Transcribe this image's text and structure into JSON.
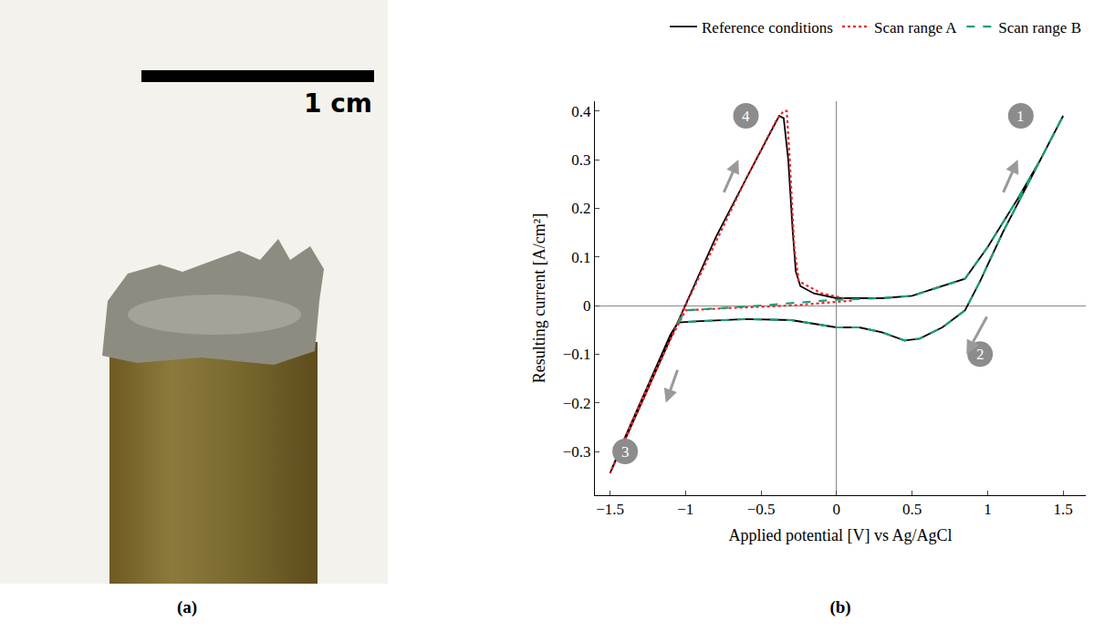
{
  "chart_data": {
    "type": "line",
    "x_label": "Applied potential [V] vs Ag/AgCl",
    "y_label": "Resulting current [A/cm²]",
    "xlim": [
      -1.6,
      1.65
    ],
    "ylim": [
      -0.39,
      0.42
    ],
    "xticks": [
      {
        "value": -1.5,
        "label": "−1.5"
      },
      {
        "value": -1,
        "label": "−1"
      },
      {
        "value": -0.5,
        "label": "−0.5"
      },
      0,
      0.5,
      1,
      1.5
    ],
    "yticks": [
      {
        "value": -0.3,
        "label": "−0.3"
      },
      {
        "value": -0.2,
        "label": "−0.2"
      },
      {
        "value": -0.1,
        "label": "−0.1"
      },
      0,
      0.1,
      0.2,
      0.3,
      0.4
    ],
    "grid": false,
    "legend": "top",
    "series": [
      {
        "name": "Reference conditions",
        "color": "#000000",
        "line_style": "solid",
        "x": [
          0,
          0.3,
          0.5,
          0.7,
          0.85,
          1.0,
          1.2,
          1.35,
          1.5,
          1.3,
          1.1,
          0.95,
          0.85,
          0.7,
          0.55,
          0.45,
          0.3,
          0.15,
          0,
          -0.3,
          -0.6,
          -0.9,
          -1.05,
          -1.1,
          -1.2,
          -1.3,
          -1.4,
          -1.5,
          -1.0,
          -0.8,
          -0.6,
          -0.45,
          -0.38,
          -0.35,
          -0.32,
          -0.29,
          -0.27,
          -0.24,
          -0.15,
          0
        ],
        "values": [
          0.015,
          0.015,
          0.02,
          0.04,
          0.055,
          0.12,
          0.22,
          0.3,
          0.39,
          0.27,
          0.15,
          0.05,
          -0.01,
          -0.045,
          -0.068,
          -0.072,
          -0.055,
          -0.045,
          -0.045,
          -0.03,
          -0.028,
          -0.032,
          -0.035,
          -0.06,
          -0.13,
          -0.2,
          -0.27,
          -0.345,
          0.0,
          0.14,
          0.26,
          0.35,
          0.39,
          0.385,
          0.3,
          0.15,
          0.07,
          0.04,
          0.025,
          0.015
        ]
      },
      {
        "name": "Scan range A",
        "color": "#e8262a",
        "line_style": "dot",
        "x": [
          0.1,
          -0.3,
          -0.7,
          -0.95,
          -1.0,
          -1.1,
          -1.3,
          -1.5,
          -1.0,
          -0.6,
          -0.4,
          -0.35,
          -0.33,
          -0.31,
          -0.28,
          -0.25,
          -0.1,
          0.05
        ],
        "values": [
          0.01,
          0.0,
          -0.005,
          -0.01,
          -0.01,
          -0.07,
          -0.2,
          -0.345,
          0.0,
          0.26,
          0.38,
          0.4,
          0.4,
          0.3,
          0.12,
          0.05,
          0.025,
          0.015
        ]
      },
      {
        "name": "Scan range B",
        "color": "#1a9e77",
        "line_style": "dash",
        "x": [
          -1.05,
          -1.0,
          -0.5,
          0,
          0.3,
          0.5,
          0.7,
          0.85,
          1.0,
          1.2,
          1.35,
          1.5,
          1.3,
          1.1,
          0.95,
          0.85,
          0.7,
          0.55,
          0.45,
          0.3,
          0.15,
          0,
          -0.3,
          -0.6,
          -0.9,
          -1.05
        ],
        "values": [
          -0.035,
          -0.01,
          0.0,
          0.012,
          0.015,
          0.02,
          0.04,
          0.055,
          0.12,
          0.22,
          0.3,
          0.39,
          0.27,
          0.15,
          0.05,
          -0.01,
          -0.045,
          -0.068,
          -0.072,
          -0.055,
          -0.045,
          -0.045,
          -0.03,
          -0.028,
          -0.032,
          -0.035
        ]
      }
    ],
    "annotations": [
      {
        "text": "1",
        "x": 1.22,
        "y": 0.39
      },
      {
        "text": "2",
        "x": 0.95,
        "y": -0.1
      },
      {
        "text": "3",
        "x": -1.4,
        "y": -0.3
      },
      {
        "text": "4",
        "x": -0.6,
        "y": 0.39
      }
    ],
    "arrows": [
      {
        "from": [
          1.1,
          0.23
        ],
        "to": [
          1.2,
          0.3
        ]
      },
      {
        "from": [
          1.0,
          -0.02
        ],
        "to": [
          0.86,
          -0.1
        ]
      },
      {
        "from": [
          -1.05,
          -0.13
        ],
        "to": [
          -1.13,
          -0.2
        ]
      },
      {
        "from": [
          -0.75,
          0.23
        ],
        "to": [
          -0.65,
          0.3
        ]
      }
    ]
  },
  "figure": {
    "panel_labels": [
      "(a)",
      "(b)"
    ],
    "photo": {
      "scale_bar_label": "1 cm"
    }
  }
}
